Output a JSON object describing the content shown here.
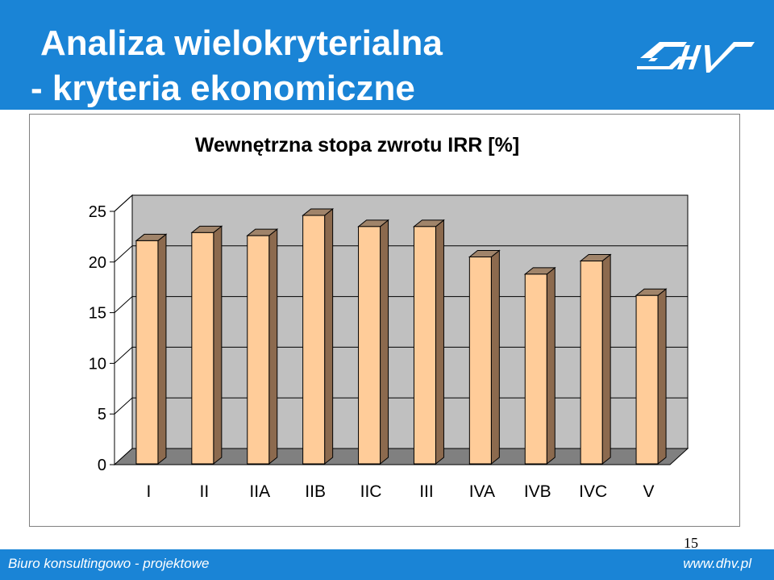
{
  "header": {
    "title_line1": "Analiza wielokryterialna",
    "title_line2": "- kryteria ekonomiczne",
    "logo_text": "DHV",
    "background_color": "#1a84d6"
  },
  "chart_data": {
    "type": "bar",
    "title": "Wewnętrzna stopa zwrotu IRR [%]",
    "categories": [
      "I",
      "II",
      "IIA",
      "IIB",
      "IIC",
      "III",
      "IVA",
      "IVB",
      "IVC",
      "V"
    ],
    "values": [
      22.1,
      22.9,
      22.6,
      24.6,
      23.5,
      23.5,
      20.5,
      18.8,
      20.1,
      16.7
    ],
    "ylim": [
      0,
      25
    ],
    "yticks": [
      0,
      5,
      10,
      15,
      20,
      25
    ],
    "xlabel": "",
    "ylabel": "",
    "grid": true,
    "style": "3d",
    "bar_color": "#ffcc99",
    "bar_side_color": "#8c6a4e",
    "wall_color": "#c0c0c0",
    "floor_color": "#808080"
  },
  "page_number": "15",
  "footer": {
    "left_text": "Biuro konsultingowo - projektowe",
    "right_text": "www.dhv.pl"
  }
}
